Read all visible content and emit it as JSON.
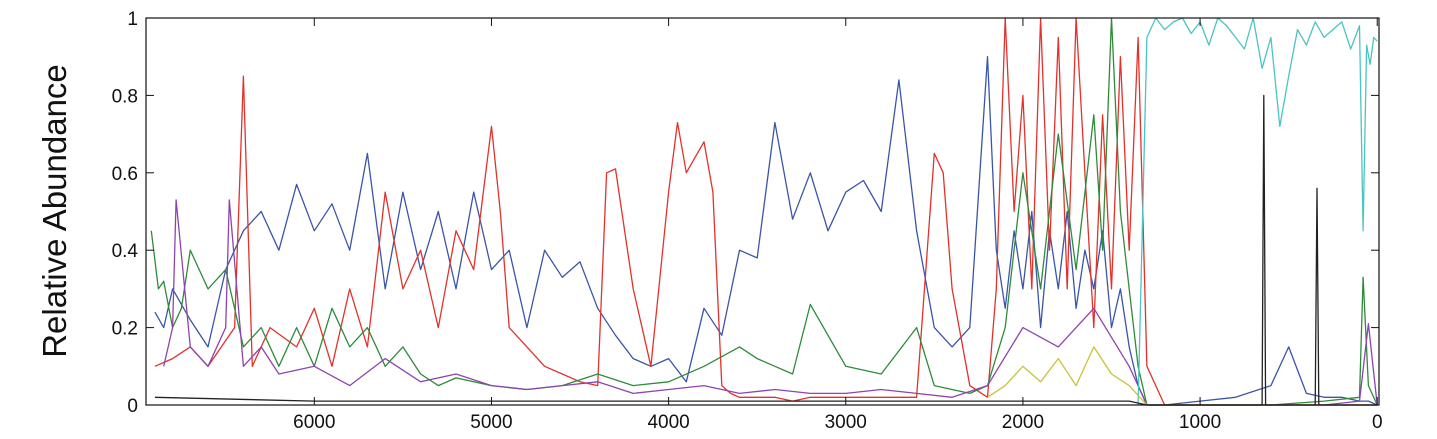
{
  "chart_data": {
    "type": "line",
    "title": "",
    "xlabel": "",
    "ylabel": "Relative Abundance",
    "xlim": [
      6950,
      -10
    ],
    "ylim": [
      0,
      1
    ],
    "x_reversed": true,
    "xticks": [
      6000,
      5000,
      4000,
      3000,
      2000,
      1000,
      0
    ],
    "yticks": [
      0,
      0.2,
      0.4,
      0.6,
      0.8,
      1
    ],
    "ytick_labels": [
      "0",
      "0.2",
      "0.4",
      "0.6",
      "0.8",
      "1"
    ],
    "xtick_labels": [
      "6000",
      "5000",
      "4000",
      "3000",
      "2000",
      "1000",
      "0"
    ],
    "grid": false,
    "legend": "none",
    "colors": {
      "blue": "#3a55a8",
      "red": "#e3312b",
      "green": "#2e8b3a",
      "purple": "#8e44ad",
      "cyan": "#4cc3c3",
      "yellow": "#c9c23a",
      "black": "#222222"
    },
    "series": [
      {
        "color": "blue",
        "x": [
          6900,
          6850,
          6800,
          6700,
          6600,
          6500,
          6400,
          6300,
          6200,
          6100,
          6000,
          5900,
          5800,
          5700,
          5600,
          5500,
          5400,
          5300,
          5200,
          5100,
          5000,
          4900,
          4800,
          4700,
          4600,
          4500,
          4400,
          4300,
          4200,
          4100,
          4000,
          3900,
          3800,
          3700,
          3600,
          3500,
          3400,
          3300,
          3200,
          3100,
          3000,
          2900,
          2800,
          2700,
          2600,
          2500,
          2400,
          2300,
          2200,
          2150,
          2100,
          2050,
          2000,
          1950,
          1900,
          1850,
          1800,
          1750,
          1700,
          1650,
          1600,
          1550,
          1500,
          1450,
          1400,
          1350,
          1300,
          1200,
          1000,
          800,
          600,
          500,
          400,
          300,
          200,
          100,
          50,
          0
        ],
        "values": [
          0.24,
          0.2,
          0.3,
          0.22,
          0.15,
          0.35,
          0.45,
          0.5,
          0.4,
          0.57,
          0.45,
          0.52,
          0.4,
          0.65,
          0.3,
          0.55,
          0.35,
          0.5,
          0.3,
          0.55,
          0.35,
          0.4,
          0.2,
          0.4,
          0.33,
          0.37,
          0.25,
          0.18,
          0.12,
          0.1,
          0.12,
          0.06,
          0.25,
          0.18,
          0.4,
          0.38,
          0.73,
          0.48,
          0.6,
          0.45,
          0.55,
          0.58,
          0.5,
          0.84,
          0.45,
          0.2,
          0.15,
          0.2,
          0.9,
          0.4,
          0.25,
          0.45,
          0.3,
          0.5,
          0.2,
          0.45,
          0.3,
          0.5,
          0.25,
          0.4,
          0.3,
          0.45,
          0.2,
          0.3,
          0.15,
          0.05,
          0.0,
          0.0,
          0.01,
          0.02,
          0.05,
          0.15,
          0.03,
          0.02,
          0.02,
          0.01,
          0.01,
          0.0
        ]
      },
      {
        "color": "red",
        "x": [
          6900,
          6800,
          6700,
          6600,
          6450,
          6400,
          6350,
          6250,
          6100,
          6000,
          5900,
          5800,
          5700,
          5600,
          5500,
          5400,
          5300,
          5200,
          5100,
          5000,
          4950,
          4900,
          4800,
          4700,
          4600,
          4500,
          4400,
          4350,
          4300,
          4200,
          4100,
          4000,
          3950,
          3900,
          3800,
          3750,
          3700,
          3650,
          3600,
          3500,
          3400,
          3300,
          3200,
          3000,
          2800,
          2600,
          2500,
          2450,
          2400,
          2300,
          2200,
          2150,
          2100,
          2050,
          2000,
          1950,
          1900,
          1850,
          1800,
          1750,
          1700,
          1650,
          1600,
          1550,
          1500,
          1450,
          1400,
          1350,
          1300,
          1200,
          1000,
          800,
          600,
          400,
          200,
          0
        ],
        "values": [
          0.1,
          0.12,
          0.15,
          0.1,
          0.2,
          0.85,
          0.1,
          0.2,
          0.15,
          0.25,
          0.1,
          0.3,
          0.15,
          0.55,
          0.3,
          0.4,
          0.2,
          0.45,
          0.35,
          0.72,
          0.5,
          0.2,
          0.15,
          0.1,
          0.08,
          0.06,
          0.05,
          0.6,
          0.61,
          0.3,
          0.1,
          0.55,
          0.73,
          0.6,
          0.68,
          0.55,
          0.05,
          0.03,
          0.02,
          0.02,
          0.02,
          0.01,
          0.02,
          0.02,
          0.02,
          0.02,
          0.65,
          0.6,
          0.3,
          0.05,
          0.02,
          0.3,
          1.0,
          0.5,
          0.8,
          0.3,
          1.0,
          0.4,
          0.95,
          0.3,
          1.0,
          0.6,
          0.2,
          0.75,
          0.3,
          0.9,
          0.4,
          0.95,
          0.1,
          0.0,
          0.0,
          0.0,
          0.0,
          0.0,
          0.0,
          0.0
        ]
      },
      {
        "color": "green",
        "x": [
          6920,
          6880,
          6850,
          6800,
          6750,
          6700,
          6600,
          6500,
          6400,
          6300,
          6200,
          6100,
          6000,
          5900,
          5800,
          5700,
          5600,
          5500,
          5400,
          5300,
          5200,
          5000,
          4800,
          4600,
          4400,
          4200,
          4000,
          3800,
          3600,
          3500,
          3400,
          3300,
          3200,
          3000,
          2800,
          2600,
          2500,
          2300,
          2200,
          2100,
          2000,
          1900,
          1800,
          1700,
          1600,
          1550,
          1500,
          1450,
          1400,
          1350,
          1300,
          1000,
          600,
          300,
          100,
          80,
          50,
          0
        ],
        "values": [
          0.45,
          0.3,
          0.32,
          0.2,
          0.25,
          0.4,
          0.3,
          0.35,
          0.15,
          0.2,
          0.1,
          0.2,
          0.1,
          0.25,
          0.15,
          0.2,
          0.1,
          0.15,
          0.08,
          0.05,
          0.07,
          0.05,
          0.04,
          0.05,
          0.08,
          0.05,
          0.06,
          0.1,
          0.15,
          0.12,
          0.1,
          0.08,
          0.26,
          0.1,
          0.08,
          0.2,
          0.05,
          0.03,
          0.05,
          0.2,
          0.6,
          0.3,
          0.7,
          0.35,
          0.75,
          0.4,
          1.0,
          0.5,
          0.3,
          0.1,
          0.0,
          0.0,
          0.0,
          0.01,
          0.02,
          0.33,
          0.05,
          0.0
        ]
      },
      {
        "color": "purple",
        "x": [
          6850,
          6800,
          6780,
          6700,
          6600,
          6500,
          6480,
          6400,
          6300,
          6200,
          6000,
          5800,
          5600,
          5400,
          5200,
          5000,
          4800,
          4600,
          4400,
          4200,
          4000,
          3800,
          3600,
          3400,
          3200,
          3000,
          2800,
          2600,
          2400,
          2200,
          2000,
          1800,
          1600,
          1400,
          1300,
          1000,
          600,
          300,
          100,
          50,
          0
        ],
        "values": [
          0.1,
          0.2,
          0.53,
          0.15,
          0.1,
          0.2,
          0.53,
          0.1,
          0.15,
          0.08,
          0.1,
          0.05,
          0.12,
          0.06,
          0.08,
          0.05,
          0.04,
          0.05,
          0.06,
          0.03,
          0.04,
          0.05,
          0.03,
          0.04,
          0.03,
          0.03,
          0.04,
          0.03,
          0.02,
          0.05,
          0.2,
          0.15,
          0.25,
          0.1,
          0.0,
          0.0,
          0.0,
          0.0,
          0.01,
          0.21,
          0.0
        ]
      },
      {
        "color": "cyan",
        "x": [
          1350,
          1300,
          1250,
          1200,
          1150,
          1100,
          1050,
          1000,
          950,
          900,
          850,
          800,
          750,
          700,
          650,
          600,
          550,
          500,
          450,
          400,
          350,
          300,
          250,
          200,
          150,
          100,
          80,
          60,
          40,
          20,
          0
        ],
        "values": [
          0.0,
          0.95,
          1.0,
          0.97,
          0.99,
          1.0,
          0.96,
          0.99,
          0.93,
          1.0,
          0.98,
          0.95,
          0.92,
          1.0,
          0.87,
          0.95,
          0.72,
          0.85,
          0.97,
          0.93,
          0.99,
          0.95,
          0.97,
          0.99,
          0.92,
          0.98,
          0.45,
          0.93,
          0.88,
          0.95,
          0.94
        ]
      },
      {
        "color": "yellow",
        "x": [
          2200,
          2100,
          2000,
          1900,
          1800,
          1700,
          1600,
          1500,
          1400,
          1300,
          1000,
          500,
          0
        ],
        "values": [
          0.02,
          0.05,
          0.1,
          0.06,
          0.12,
          0.05,
          0.15,
          0.08,
          0.05,
          0.0,
          0.0,
          0.0,
          0.0
        ]
      },
      {
        "color": "black",
        "x": [
          6900,
          6000,
          5000,
          4000,
          3000,
          2200,
          1400,
          1300,
          700,
          650,
          640,
          630,
          600,
          350,
          340,
          330,
          320,
          300,
          100,
          0
        ],
        "values": [
          0.02,
          0.01,
          0.01,
          0.01,
          0.01,
          0.01,
          0.01,
          0.0,
          0.0,
          0.0,
          0.8,
          0.0,
          0.0,
          0.0,
          0.56,
          0.0,
          0.0,
          0.0,
          0.0,
          0.0
        ]
      }
    ]
  }
}
